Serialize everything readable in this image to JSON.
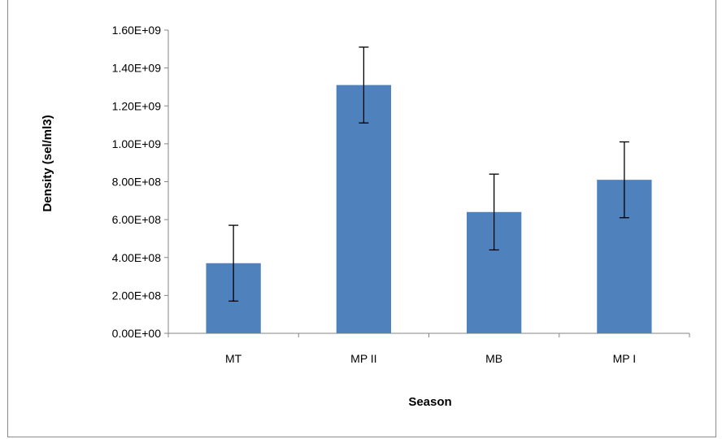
{
  "chart_data": {
    "type": "bar",
    "categories": [
      "MT",
      "MP II",
      "MB",
      "MP I"
    ],
    "values": [
      370000000,
      1310000000,
      640000000,
      810000000
    ],
    "errors": [
      200000000,
      200000000,
      200000000,
      200000000
    ],
    "xlabel": "Season",
    "ylabel": "Density (sel/ml3)",
    "ylim": [
      0,
      1600000000
    ],
    "yticks": [
      0,
      200000000,
      400000000,
      600000000,
      800000000,
      1000000000,
      1200000000,
      1400000000,
      1600000000
    ],
    "ytick_labels": [
      "0.00E+00",
      "2.00E+08",
      "4.00E+08",
      "6.00E+08",
      "8.00E+08",
      "1.00E+09",
      "1.20E+09",
      "1.40E+09",
      "1.60E+09"
    ],
    "grid": false,
    "legend": "none",
    "bar_color": "#4f81bd"
  }
}
